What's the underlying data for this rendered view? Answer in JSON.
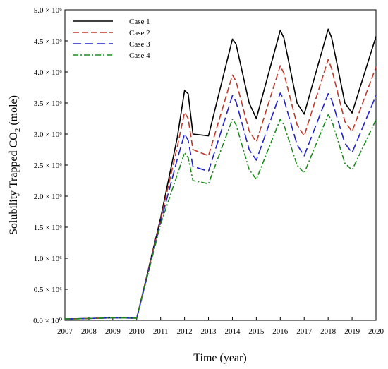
{
  "chart_data": {
    "type": "line",
    "xlabel": "Time (year)",
    "ylabel": "Solubility Trapped CO",
    "ylabel_sub": "2",
    "ylabel_suffix": " (mole)",
    "xlim": [
      2007,
      2020
    ],
    "ylim": [
      0,
      5000000
    ],
    "x_ticks": [
      2007,
      2008,
      2009,
      2010,
      2011,
      2012,
      2013,
      2014,
      2015,
      2016,
      2017,
      2018,
      2019,
      2020
    ],
    "x_tick_labels": [
      "2007",
      "2008",
      "2009",
      "2010",
      "2011",
      "2012",
      "2013",
      "2014",
      "2015",
      "2016",
      "2017",
      "2018",
      "2019",
      "2020"
    ],
    "y_ticks": [
      0,
      500000,
      1000000,
      1500000,
      2000000,
      2500000,
      3000000,
      3500000,
      4000000,
      4500000,
      5000000
    ],
    "y_tick_labels": [
      "0.0 × 10⁰",
      "0.5 × 10⁶",
      "1.0 × 10⁶",
      "1.5 × 10⁶",
      "2.0 × 10⁶",
      "2.5 × 10⁶",
      "3.0 × 10⁶",
      "3.5 × 10⁶",
      "4.0 × 10⁶",
      "4.5 × 10⁶",
      "5.0 × 10⁶"
    ],
    "legend_position": "top-left",
    "grid": false,
    "series": [
      {
        "name": "Case 1",
        "color": "#000000",
        "dash": "solid",
        "points": [
          [
            2007,
            20000
          ],
          [
            2008,
            30000
          ],
          [
            2009,
            40000
          ],
          [
            2010,
            35000
          ],
          [
            2011,
            1650000
          ],
          [
            2011.7,
            2950000
          ],
          [
            2012.0,
            3700000
          ],
          [
            2012.15,
            3650000
          ],
          [
            2012.35,
            3000000
          ],
          [
            2013.0,
            2970000
          ],
          [
            2014.0,
            4530000
          ],
          [
            2014.15,
            4450000
          ],
          [
            2014.7,
            3500000
          ],
          [
            2015.0,
            3250000
          ],
          [
            2016.0,
            4670000
          ],
          [
            2016.15,
            4550000
          ],
          [
            2016.7,
            3500000
          ],
          [
            2017.0,
            3320000
          ],
          [
            2018.0,
            4690000
          ],
          [
            2018.15,
            4550000
          ],
          [
            2018.7,
            3500000
          ],
          [
            2019.0,
            3340000
          ],
          [
            2020,
            4570000
          ]
        ]
      },
      {
        "name": "Case 2",
        "color": "#c0392b",
        "dash": "9,4",
        "points": [
          [
            2007,
            20000
          ],
          [
            2008,
            30000
          ],
          [
            2009,
            40000
          ],
          [
            2010,
            35000
          ],
          [
            2011,
            1620000
          ],
          [
            2011.7,
            2800000
          ],
          [
            2012.0,
            3350000
          ],
          [
            2012.15,
            3250000
          ],
          [
            2012.35,
            2750000
          ],
          [
            2013.0,
            2650000
          ],
          [
            2014.0,
            3950000
          ],
          [
            2014.15,
            3850000
          ],
          [
            2014.7,
            3050000
          ],
          [
            2015.0,
            2870000
          ],
          [
            2016.0,
            4100000
          ],
          [
            2016.15,
            3980000
          ],
          [
            2016.7,
            3150000
          ],
          [
            2017.0,
            2970000
          ],
          [
            2018.0,
            4200000
          ],
          [
            2018.15,
            4050000
          ],
          [
            2018.7,
            3200000
          ],
          [
            2019.0,
            3040000
          ],
          [
            2020,
            4080000
          ]
        ]
      },
      {
        "name": "Case 3",
        "color": "#2222cc",
        "dash": "12,5",
        "points": [
          [
            2007,
            20000
          ],
          [
            2008,
            30000
          ],
          [
            2009,
            40000
          ],
          [
            2010,
            35000
          ],
          [
            2011,
            1580000
          ],
          [
            2011.7,
            2600000
          ],
          [
            2012.0,
            3000000
          ],
          [
            2012.15,
            2900000
          ],
          [
            2012.35,
            2480000
          ],
          [
            2013.0,
            2400000
          ],
          [
            2014.0,
            3620000
          ],
          [
            2014.15,
            3520000
          ],
          [
            2014.7,
            2750000
          ],
          [
            2015.0,
            2580000
          ],
          [
            2016.0,
            3660000
          ],
          [
            2016.15,
            3560000
          ],
          [
            2016.7,
            2830000
          ],
          [
            2017.0,
            2650000
          ],
          [
            2018.0,
            3650000
          ],
          [
            2018.15,
            3550000
          ],
          [
            2018.7,
            2850000
          ],
          [
            2019.0,
            2700000
          ],
          [
            2020,
            3620000
          ]
        ]
      },
      {
        "name": "Case 4",
        "color": "#1e8a1e",
        "dash": "8,3,2,3",
        "points": [
          [
            2007,
            20000
          ],
          [
            2008,
            30000
          ],
          [
            2009,
            40000
          ],
          [
            2010,
            35000
          ],
          [
            2011,
            1550000
          ],
          [
            2011.7,
            2350000
          ],
          [
            2012.0,
            2700000
          ],
          [
            2012.15,
            2620000
          ],
          [
            2012.35,
            2250000
          ],
          [
            2013.0,
            2200000
          ],
          [
            2014.0,
            3240000
          ],
          [
            2014.15,
            3150000
          ],
          [
            2014.7,
            2430000
          ],
          [
            2015.0,
            2270000
          ],
          [
            2016.0,
            3240000
          ],
          [
            2016.15,
            3150000
          ],
          [
            2016.7,
            2500000
          ],
          [
            2017.0,
            2370000
          ],
          [
            2018.0,
            3310000
          ],
          [
            2018.15,
            3220000
          ],
          [
            2018.7,
            2530000
          ],
          [
            2019.0,
            2420000
          ],
          [
            2020,
            3230000
          ]
        ]
      }
    ]
  }
}
